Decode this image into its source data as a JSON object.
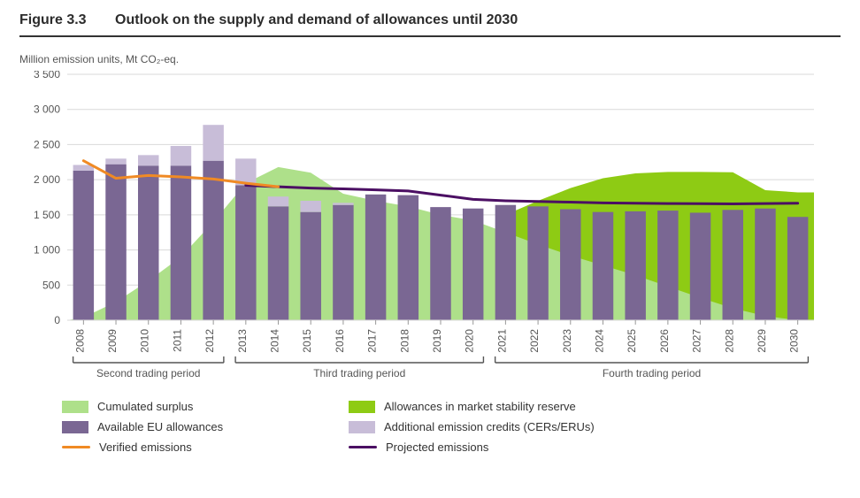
{
  "title_prefix": "Figure 3.3",
  "title_text": "Outlook on the supply and demand of allowances until 2030",
  "y_axis_label_html": "Million emission units, Mt CO₂-eq.",
  "chart": {
    "type": "bar+area+line",
    "background_color": "#ffffff",
    "text_color": "#555555",
    "grid_color": "#d9d9d9",
    "axis_color": "#666666",
    "ylim": [
      0,
      3500
    ],
    "ytick_step": 500,
    "yticks": [
      "0",
      "500",
      "1 000",
      "1 500",
      "2 000",
      "2 500",
      "3 000",
      "3 500"
    ],
    "years": [
      2008,
      2009,
      2010,
      2011,
      2012,
      2013,
      2014,
      2015,
      2016,
      2017,
      2018,
      2019,
      2020,
      2021,
      2022,
      2023,
      2024,
      2025,
      2026,
      2027,
      2028,
      2029,
      2030
    ],
    "year_labels": [
      "2008",
      "2009",
      "2010",
      "2011",
      "2012",
      "2013",
      "2014",
      "2015",
      "2016",
      "2017",
      "2018",
      "2019",
      "2020",
      "2021",
      "2022",
      "2023",
      "2024",
      "2025",
      "2026",
      "2027",
      "2028",
      "2029",
      "2030"
    ],
    "bar_width_ratio": 0.64,
    "colors": {
      "cumulated_surplus": "#aee08a",
      "msr": "#8ecb14",
      "available_allowances": "#7a6793",
      "additional_credits": "#c8bdd8",
      "verified_line": "#f08a24",
      "projected_line": "#4b0f63"
    },
    "cumulated_surplus": [
      40,
      260,
      560,
      900,
      1400,
      1950,
      2180,
      2100,
      1800,
      1700,
      1620,
      1500,
      1420,
      1250,
      1080,
      920,
      780,
      640,
      480,
      320,
      170,
      60,
      0
    ],
    "msr": [
      0,
      0,
      0,
      0,
      0,
      0,
      0,
      0,
      0,
      0,
      0,
      120,
      280,
      1500,
      1700,
      1880,
      2020,
      2090,
      2110,
      2110,
      2105,
      1850,
      1820
    ],
    "available_allowances": [
      2130,
      2220,
      2200,
      2200,
      2270,
      1920,
      1620,
      1540,
      1640,
      1790,
      1780,
      1610,
      1590,
      1640,
      1620,
      1580,
      1540,
      1550,
      1560,
      1530,
      1570,
      1590,
      1470
    ],
    "additional_credits": [
      80,
      80,
      150,
      280,
      510,
      380,
      140,
      160,
      30,
      0,
      0,
      0,
      0,
      0,
      0,
      0,
      0,
      0,
      0,
      0,
      0,
      0,
      0
    ],
    "verified_line_years": [
      2008,
      2009,
      2010,
      2011,
      2012,
      2013,
      2014
    ],
    "verified_line_values": [
      2270,
      2020,
      2060,
      2040,
      2010,
      1950,
      1900
    ],
    "projected_line_years": [
      2013,
      2014,
      2015,
      2016,
      2017,
      2018,
      2019,
      2020,
      2021,
      2022,
      2023,
      2024,
      2025,
      2026,
      2027,
      2028,
      2029,
      2030
    ],
    "projected_line_values": [
      1920,
      1900,
      1880,
      1870,
      1855,
      1840,
      1780,
      1720,
      1700,
      1690,
      1680,
      1670,
      1665,
      1660,
      1658,
      1655,
      1660,
      1665
    ],
    "periods": [
      {
        "label": "Second trading period",
        "from": 2008,
        "to": 2012
      },
      {
        "label": "Third trading period",
        "from": 2013,
        "to": 2020
      },
      {
        "label": "Fourth trading period",
        "from": 2021,
        "to": 2030
      }
    ],
    "line_width": 3
  },
  "legend": {
    "surplus": "Cumulated surplus",
    "msr": "Allowances in market stability reserve",
    "allowances": "Available EU allowances",
    "credits": "Additional emission credits (CERs/ERUs)",
    "verified": "Verified emissions",
    "projected": "Projected emissions"
  }
}
